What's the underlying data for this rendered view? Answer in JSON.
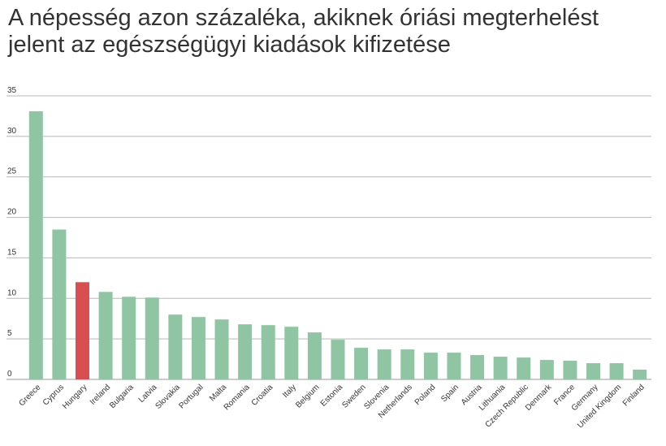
{
  "chart_data": {
    "type": "bar",
    "title": "A népesség azon százaléka, akiknek óriási megterhelést jelent az egészségügyi kiadások kifizetése",
    "xlabel": "",
    "ylabel": "",
    "ylim": [
      0,
      35
    ],
    "yticks": [
      0,
      5,
      10,
      15,
      20,
      25,
      30,
      35
    ],
    "grid": true,
    "categories": [
      "Greece",
      "Cyprus",
      "Hungary",
      "Ireland",
      "Bulgaria",
      "Latvia",
      "Slovakia",
      "Portugal",
      "Malta",
      "Romania",
      "Croatia",
      "Italy",
      "Belgium",
      "Estonia",
      "Sweden",
      "Slovenia",
      "Netherlands",
      "Poland",
      "Spain",
      "Austria",
      "Lithuania",
      "Czech Republic",
      "Denmark",
      "France",
      "Germany",
      "United Kingdom",
      "Finland"
    ],
    "values": [
      33.1,
      18.5,
      12.0,
      10.8,
      10.2,
      10.1,
      8.0,
      7.7,
      7.4,
      6.8,
      6.7,
      6.5,
      5.8,
      4.9,
      3.9,
      3.7,
      3.7,
      3.3,
      3.3,
      3.0,
      2.8,
      2.7,
      2.4,
      2.3,
      2.0,
      2.0,
      1.2
    ],
    "colors": {
      "default": "#8fc5a3",
      "highlight": "#d94f51",
      "grid": "#b8b8b8",
      "baseline": "#999999"
    },
    "highlight_category": "Hungary"
  }
}
